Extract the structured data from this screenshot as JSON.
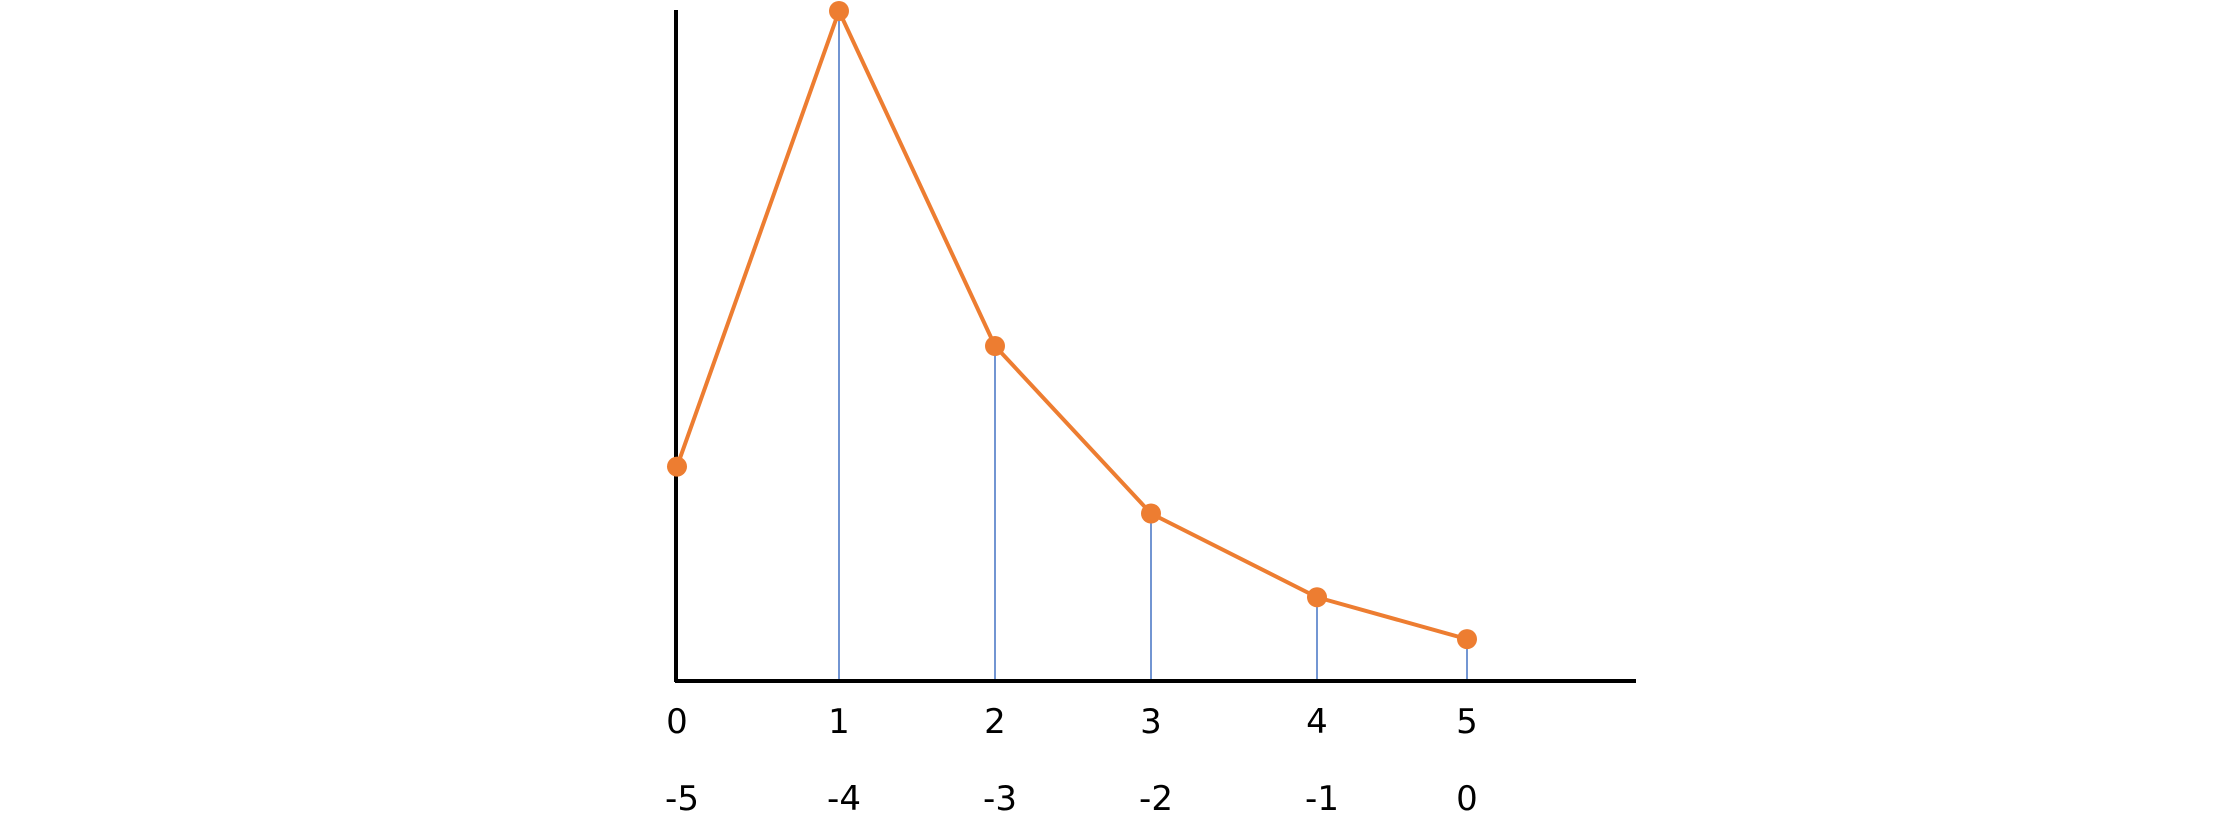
{
  "chart_data": {
    "type": "line",
    "x": [
      0,
      1,
      2,
      3,
      4,
      5
    ],
    "values": [
      32,
      100,
      50,
      25,
      12.5,
      6.25
    ],
    "x_tick_labels_top": [
      "0",
      "1",
      "2",
      "3",
      "4",
      "5"
    ],
    "x_tick_labels_bottom": [
      "-5",
      "-4",
      "-3",
      "-2",
      "-1",
      "0"
    ],
    "title": "",
    "xlabel": "",
    "ylabel": "",
    "ylim": [
      0,
      100
    ],
    "grid": false,
    "drop_lines": true,
    "markers": true,
    "colors": {
      "line": "#ED7D31",
      "marker": "#ED7D31",
      "drop_line": "#4472C4",
      "axis": "#000000"
    }
  }
}
